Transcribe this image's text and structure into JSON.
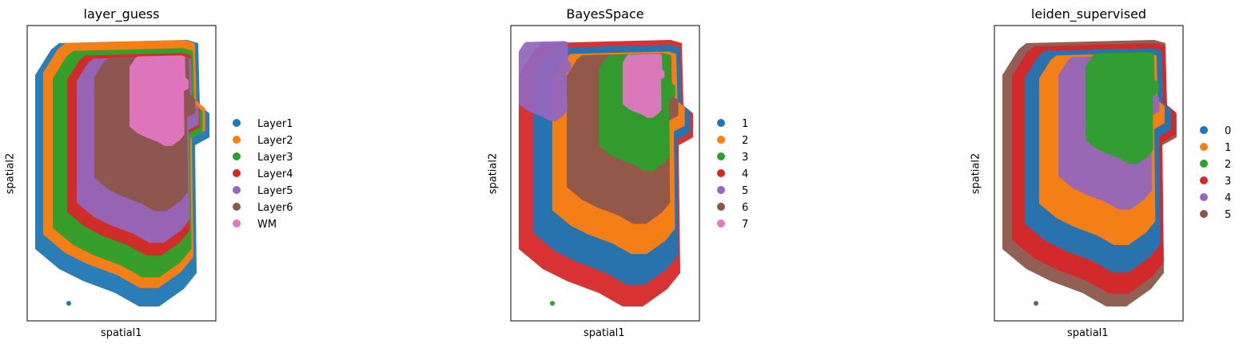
{
  "chart_data": [
    {
      "type": "scatter",
      "title": "layer_guess",
      "xlabel": "spatial1",
      "ylabel": "spatial2",
      "legend_placement": "right",
      "categories": [
        "Layer1",
        "Layer2",
        "Layer3",
        "Layer4",
        "Layer5",
        "Layer6",
        "WM"
      ],
      "colors": [
        "#1f77b4",
        "#ff7f0e",
        "#2ca02c",
        "#d62728",
        "#9467bd",
        "#8c564b",
        "#e377c2"
      ]
    },
    {
      "type": "scatter",
      "title": "BayesSpace",
      "xlabel": "spatial1",
      "ylabel": "spatial2",
      "legend_placement": "right",
      "categories": [
        "1",
        "2",
        "3",
        "4",
        "5",
        "6",
        "7"
      ],
      "colors": [
        "#1f77b4",
        "#ff7f0e",
        "#2ca02c",
        "#d62728",
        "#9467bd",
        "#8c564b",
        "#e377c2"
      ]
    },
    {
      "type": "scatter",
      "title": "leiden_supervised",
      "xlabel": "spatial1",
      "ylabel": "spatial2",
      "legend_placement": "right",
      "categories": [
        "0",
        "1",
        "2",
        "3",
        "4",
        "5"
      ],
      "colors": [
        "#1f77b4",
        "#ff7f0e",
        "#2ca02c",
        "#d62728",
        "#9467bd",
        "#8c564b"
      ]
    }
  ]
}
